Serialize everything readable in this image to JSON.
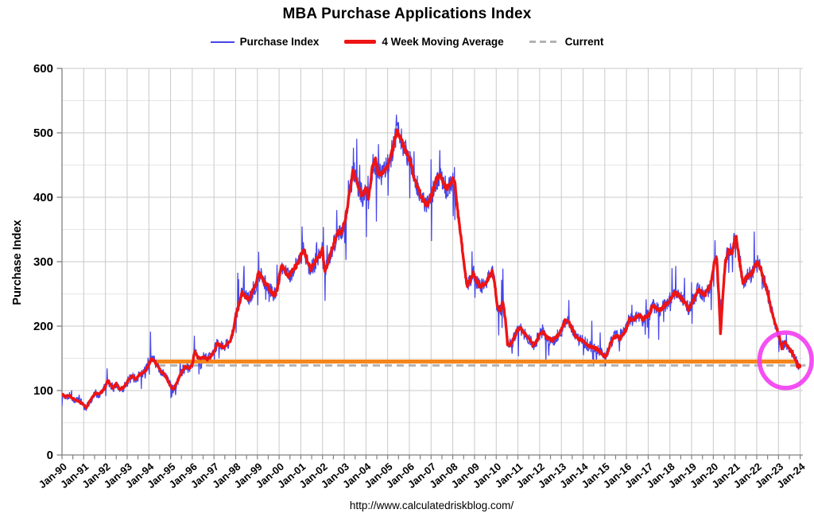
{
  "title": "MBA Purchase Applications Index",
  "legend": [
    {
      "label": "Purchase Index",
      "color": "#4545ea",
      "style": "thin-line"
    },
    {
      "label": "4 Week Moving Average",
      "color": "#ee1414",
      "style": "thick-line"
    },
    {
      "label": "Current",
      "color": "#b3b3b3",
      "style": "dashed-line"
    }
  ],
  "footer": "http://www.calculatedriskblog.com/",
  "chart_data": {
    "type": "line",
    "title": "MBA Purchase Applications Index",
    "xlabel": "",
    "ylabel": "Purchase Index",
    "ylim": [
      0,
      600
    ],
    "y_major_ticks": [
      0,
      100,
      200,
      300,
      400,
      500,
      600
    ],
    "y_minor_step": 50,
    "x_range_years": [
      1990,
      2024
    ],
    "x_ticks": [
      "Jan-90",
      "Jan-91",
      "Jan-92",
      "Jan-93",
      "Jan-94",
      "Jan-95",
      "Jan-96",
      "Jan-97",
      "Jan-98",
      "Jan-99",
      "Jan-00",
      "Jan-01",
      "Jan-02",
      "Jan-03",
      "Jan-04",
      "Jan-05",
      "Jan-06",
      "Jan-07",
      "Jan-08",
      "Jan-09",
      "Jan-10",
      "Jan-11",
      "Jan-12",
      "Jan-13",
      "Jan-14",
      "Jan-15",
      "Jan-16",
      "Jan-17",
      "Jan-18",
      "Jan-19",
      "Jan-20",
      "Jan-21",
      "Jan-22",
      "Jan-23",
      "Jan-24"
    ],
    "grid": true,
    "legend_position": "top",
    "series": [
      {
        "name": "Purchase Index",
        "color": "#4545ea",
        "derivation": "weekly index; oscillates around the 4-week moving average (individual weekly values not legible in source image)",
        "noise_seed": 1337,
        "noise_base": 3.5,
        "noise_frac": 0.035,
        "spike_prob": 0.045,
        "spike_frac": 0.14,
        "holiday_dip_frac": 0.12,
        "event_spikes": [
          [
            1992.08,
            14
          ],
          [
            1994.08,
            50
          ],
          [
            1996.1,
            28
          ],
          [
            1998.1,
            60
          ],
          [
            1999.05,
            30
          ],
          [
            2000.02,
            40
          ],
          [
            2001.05,
            42
          ],
          [
            2002.03,
            40
          ],
          [
            2003.42,
            30
          ],
          [
            2004.1,
            48
          ],
          [
            2005.4,
            30
          ],
          [
            2007.4,
            32
          ],
          [
            2008.08,
            42
          ],
          [
            2009.82,
            22
          ],
          [
            2010.3,
            42
          ],
          [
            2012.02,
            35
          ],
          [
            2013.35,
            40
          ],
          [
            2016.02,
            42
          ],
          [
            2020.08,
            36
          ],
          [
            2021.0,
            10
          ],
          [
            2022.02,
            12
          ]
        ]
      },
      {
        "name": "4 Week Moving Average",
        "color": "#ee1414",
        "points": [
          [
            1990.0,
            95
          ],
          [
            1990.15,
            90
          ],
          [
            1990.3,
            93
          ],
          [
            1990.5,
            88
          ],
          [
            1990.65,
            85
          ],
          [
            1990.8,
            83
          ],
          [
            1991.0,
            78
          ],
          [
            1991.12,
            73
          ],
          [
            1991.25,
            82
          ],
          [
            1991.4,
            90
          ],
          [
            1991.55,
            97
          ],
          [
            1991.7,
            94
          ],
          [
            1991.85,
            99
          ],
          [
            1992.0,
            106
          ],
          [
            1992.1,
            117
          ],
          [
            1992.2,
            110
          ],
          [
            1992.35,
            104
          ],
          [
            1992.5,
            111
          ],
          [
            1992.65,
            102
          ],
          [
            1992.8,
            104
          ],
          [
            1992.95,
            110
          ],
          [
            1993.1,
            118
          ],
          [
            1993.25,
            123
          ],
          [
            1993.4,
            117
          ],
          [
            1993.55,
            124
          ],
          [
            1993.7,
            127
          ],
          [
            1993.85,
            131
          ],
          [
            1994.0,
            141
          ],
          [
            1994.1,
            148
          ],
          [
            1994.25,
            146
          ],
          [
            1994.4,
            138
          ],
          [
            1994.55,
            130
          ],
          [
            1994.7,
            126
          ],
          [
            1994.85,
            117
          ],
          [
            1995.0,
            107
          ],
          [
            1995.12,
            101
          ],
          [
            1995.25,
            109
          ],
          [
            1995.4,
            121
          ],
          [
            1995.55,
            131
          ],
          [
            1995.7,
            138
          ],
          [
            1995.85,
            134
          ],
          [
            1996.0,
            140
          ],
          [
            1996.12,
            161
          ],
          [
            1996.25,
            152
          ],
          [
            1996.4,
            149
          ],
          [
            1996.55,
            152
          ],
          [
            1996.7,
            147
          ],
          [
            1996.85,
            153
          ],
          [
            1997.0,
            161
          ],
          [
            1997.15,
            174
          ],
          [
            1997.3,
            169
          ],
          [
            1997.45,
            166
          ],
          [
            1997.6,
            172
          ],
          [
            1997.75,
            178
          ],
          [
            1997.9,
            193
          ],
          [
            1998.0,
            216
          ],
          [
            1998.15,
            232
          ],
          [
            1998.3,
            252
          ],
          [
            1998.45,
            247
          ],
          [
            1998.6,
            242
          ],
          [
            1998.75,
            252
          ],
          [
            1998.9,
            262
          ],
          [
            1999.05,
            282
          ],
          [
            1999.2,
            276
          ],
          [
            1999.35,
            266
          ],
          [
            1999.5,
            262
          ],
          [
            1999.65,
            252
          ],
          [
            1999.8,
            248
          ],
          [
            1999.95,
            262
          ],
          [
            2000.1,
            296
          ],
          [
            2000.25,
            288
          ],
          [
            2000.4,
            277
          ],
          [
            2000.55,
            282
          ],
          [
            2000.7,
            290
          ],
          [
            2000.85,
            296
          ],
          [
            2001.0,
            309
          ],
          [
            2001.15,
            318
          ],
          [
            2001.3,
            302
          ],
          [
            2001.45,
            288
          ],
          [
            2001.6,
            296
          ],
          [
            2001.75,
            304
          ],
          [
            2001.9,
            312
          ],
          [
            2002.0,
            318
          ],
          [
            2002.1,
            284
          ],
          [
            2002.25,
            298
          ],
          [
            2002.4,
            316
          ],
          [
            2002.55,
            330
          ],
          [
            2002.7,
            348
          ],
          [
            2002.85,
            344
          ],
          [
            2003.0,
            358
          ],
          [
            2003.15,
            386
          ],
          [
            2003.3,
            420
          ],
          [
            2003.42,
            444
          ],
          [
            2003.55,
            428
          ],
          [
            2003.7,
            412
          ],
          [
            2003.85,
            402
          ],
          [
            2004.0,
            416
          ],
          [
            2004.12,
            396
          ],
          [
            2004.3,
            448
          ],
          [
            2004.45,
            458
          ],
          [
            2004.6,
            432
          ],
          [
            2004.75,
            438
          ],
          [
            2004.9,
            442
          ],
          [
            2005.05,
            452
          ],
          [
            2005.2,
            470
          ],
          [
            2005.35,
            492
          ],
          [
            2005.45,
            502
          ],
          [
            2005.6,
            490
          ],
          [
            2005.75,
            478
          ],
          [
            2005.9,
            468
          ],
          [
            2006.05,
            455
          ],
          [
            2006.2,
            432
          ],
          [
            2006.35,
            418
          ],
          [
            2006.5,
            406
          ],
          [
            2006.65,
            396
          ],
          [
            2006.8,
            388
          ],
          [
            2006.95,
            396
          ],
          [
            2007.1,
            412
          ],
          [
            2007.25,
            428
          ],
          [
            2007.4,
            436
          ],
          [
            2007.55,
            424
          ],
          [
            2007.7,
            414
          ],
          [
            2007.85,
            418
          ],
          [
            2008.0,
            428
          ],
          [
            2008.1,
            420
          ],
          [
            2008.25,
            370
          ],
          [
            2008.4,
            330
          ],
          [
            2008.55,
            290
          ],
          [
            2008.65,
            262
          ],
          [
            2008.8,
            272
          ],
          [
            2008.95,
            282
          ],
          [
            2009.1,
            270
          ],
          [
            2009.25,
            262
          ],
          [
            2009.4,
            264
          ],
          [
            2009.55,
            268
          ],
          [
            2009.7,
            278
          ],
          [
            2009.82,
            284
          ],
          [
            2009.95,
            262
          ],
          [
            2010.05,
            230
          ],
          [
            2010.2,
            224
          ],
          [
            2010.3,
            238
          ],
          [
            2010.42,
            212
          ],
          [
            2010.52,
            172
          ],
          [
            2010.65,
            170
          ],
          [
            2010.8,
            180
          ],
          [
            2010.95,
            192
          ],
          [
            2011.1,
            198
          ],
          [
            2011.25,
            190
          ],
          [
            2011.4,
            186
          ],
          [
            2011.55,
            178
          ],
          [
            2011.7,
            170
          ],
          [
            2011.85,
            176
          ],
          [
            2012.0,
            188
          ],
          [
            2012.15,
            192
          ],
          [
            2012.3,
            184
          ],
          [
            2012.45,
            180
          ],
          [
            2012.6,
            178
          ],
          [
            2012.75,
            182
          ],
          [
            2012.9,
            188
          ],
          [
            2013.05,
            198
          ],
          [
            2013.2,
            210
          ],
          [
            2013.35,
            206
          ],
          [
            2013.5,
            196
          ],
          [
            2013.65,
            184
          ],
          [
            2013.8,
            180
          ],
          [
            2013.95,
            178
          ],
          [
            2014.1,
            174
          ],
          [
            2014.25,
            170
          ],
          [
            2014.4,
            167
          ],
          [
            2014.55,
            166
          ],
          [
            2014.7,
            163
          ],
          [
            2014.85,
            158
          ],
          [
            2015.0,
            153
          ],
          [
            2015.1,
            156
          ],
          [
            2015.25,
            172
          ],
          [
            2015.4,
            182
          ],
          [
            2015.55,
            186
          ],
          [
            2015.7,
            180
          ],
          [
            2015.85,
            188
          ],
          [
            2016.0,
            196
          ],
          [
            2016.15,
            212
          ],
          [
            2016.3,
            208
          ],
          [
            2016.45,
            214
          ],
          [
            2016.6,
            218
          ],
          [
            2016.75,
            210
          ],
          [
            2016.9,
            214
          ],
          [
            2017.05,
            218
          ],
          [
            2017.2,
            232
          ],
          [
            2017.35,
            228
          ],
          [
            2017.5,
            224
          ],
          [
            2017.65,
            228
          ],
          [
            2017.8,
            234
          ],
          [
            2017.95,
            238
          ],
          [
            2018.1,
            246
          ],
          [
            2018.25,
            252
          ],
          [
            2018.4,
            248
          ],
          [
            2018.55,
            242
          ],
          [
            2018.7,
            236
          ],
          [
            2018.85,
            226
          ],
          [
            2019.0,
            234
          ],
          [
            2019.15,
            246
          ],
          [
            2019.3,
            256
          ],
          [
            2019.45,
            252
          ],
          [
            2019.6,
            248
          ],
          [
            2019.75,
            256
          ],
          [
            2019.9,
            266
          ],
          [
            2020.05,
            302
          ],
          [
            2020.15,
            308
          ],
          [
            2020.25,
            248
          ],
          [
            2020.33,
            188
          ],
          [
            2020.45,
            252
          ],
          [
            2020.55,
            298
          ],
          [
            2020.7,
            318
          ],
          [
            2020.85,
            312
          ],
          [
            2020.98,
            334
          ],
          [
            2021.05,
            338
          ],
          [
            2021.2,
            302
          ],
          [
            2021.35,
            268
          ],
          [
            2021.5,
            274
          ],
          [
            2021.65,
            278
          ],
          [
            2021.8,
            284
          ],
          [
            2021.95,
            296
          ],
          [
            2022.05,
            300
          ],
          [
            2022.2,
            288
          ],
          [
            2022.35,
            268
          ],
          [
            2022.5,
            252
          ],
          [
            2022.65,
            228
          ],
          [
            2022.8,
            208
          ],
          [
            2022.95,
            194
          ],
          [
            2023.05,
            182
          ],
          [
            2023.15,
            166
          ],
          [
            2023.28,
            176
          ],
          [
            2023.4,
            170
          ],
          [
            2023.5,
            164
          ],
          [
            2023.62,
            160
          ],
          [
            2023.72,
            152
          ],
          [
            2023.82,
            146
          ],
          [
            2023.93,
            138
          ]
        ]
      }
    ],
    "annotations": {
      "current_level_line": {
        "label": "Current",
        "value": 139,
        "color": "#b3b3b3",
        "style": "dashed",
        "x_start_year": 1994.43,
        "x_end_year": 2024.25
      },
      "lowest_since_1995_line": {
        "value": 145,
        "color": "#f5861c",
        "style": "solid-thick",
        "x_start_year": 1994.43,
        "x_end_year": 2023.78
      },
      "highlight_circle": {
        "center_year": 2023.33,
        "center_value": 147,
        "radius_years": 1.2,
        "radius_value": 43,
        "color": "#f23cf2"
      },
      "series_end_marker": {
        "year": 2023.93,
        "value": 138,
        "color": "#ee1414"
      }
    }
  }
}
